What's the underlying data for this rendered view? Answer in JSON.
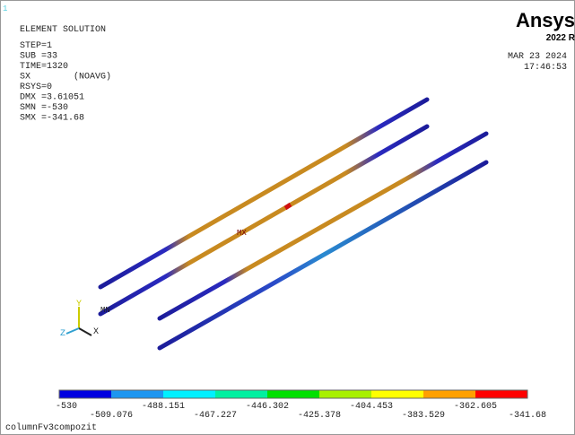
{
  "header": {
    "window_number": "1",
    "title": "ELEMENT SOLUTION",
    "lines": [
      "STEP=1",
      "SUB =33",
      "TIME=1320",
      "SX        (NOAVG)",
      "RSYS=0",
      "DMX =3.61051",
      "SMN =-530",
      "SMX =-341.68"
    ]
  },
  "brand": {
    "logo": "Ansys",
    "version": "2022 R",
    "date": "MAR 23 2024",
    "time": "17:46:53"
  },
  "markers": {
    "min": "MN",
    "max": "MX"
  },
  "triad": {
    "x": "X",
    "y": "Y",
    "z": "Z"
  },
  "legend": {
    "labels": [
      "-530",
      "-509.076",
      "-488.151",
      "-467.227",
      "-446.302",
      "-425.378",
      "-404.453",
      "-383.529",
      "-362.605",
      "-341.68"
    ]
  },
  "footer": {
    "model_name": "columnFv3compozit"
  }
}
